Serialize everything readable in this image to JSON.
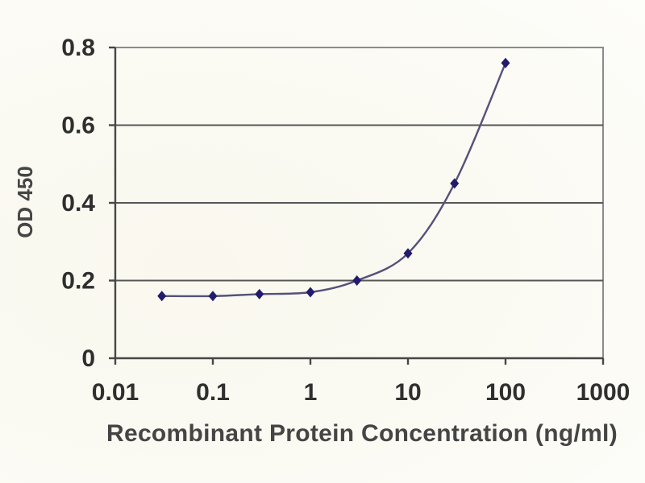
{
  "chart_data": {
    "type": "line",
    "title": "",
    "xlabel": "Recombinant Protein Concentration (ng/ml)",
    "ylabel": "OD 450",
    "x_scale": "log",
    "xlim": [
      0.01,
      1000
    ],
    "ylim": [
      0,
      0.8
    ],
    "x_ticks": [
      0.01,
      0.1,
      1,
      10,
      100,
      1000
    ],
    "x_tick_labels": [
      "0.01",
      "0.1",
      "1",
      "10",
      "100",
      "1000"
    ],
    "y_ticks": [
      0,
      0.2,
      0.4,
      0.6,
      0.8
    ],
    "y_tick_labels": [
      "0",
      "0.2",
      "0.4",
      "0.6",
      "0.8"
    ],
    "grid": "horizontal",
    "legend": "none",
    "series": [
      {
        "name": "OD 450",
        "x": [
          0.03,
          0.1,
          0.3,
          1,
          3,
          10,
          30,
          100
        ],
        "y": [
          0.16,
          0.16,
          0.165,
          0.17,
          0.2,
          0.27,
          0.45,
          0.76
        ],
        "marker": "diamond",
        "smooth": true
      }
    ],
    "colors": {
      "line": "#55517b",
      "marker": "#211c6b",
      "grid": "#565656",
      "axis": "#474747",
      "border": "#8b8b8b",
      "tick_text": "#2f2f2f",
      "title_text": "#454545",
      "background": "#fbfaf3"
    }
  }
}
